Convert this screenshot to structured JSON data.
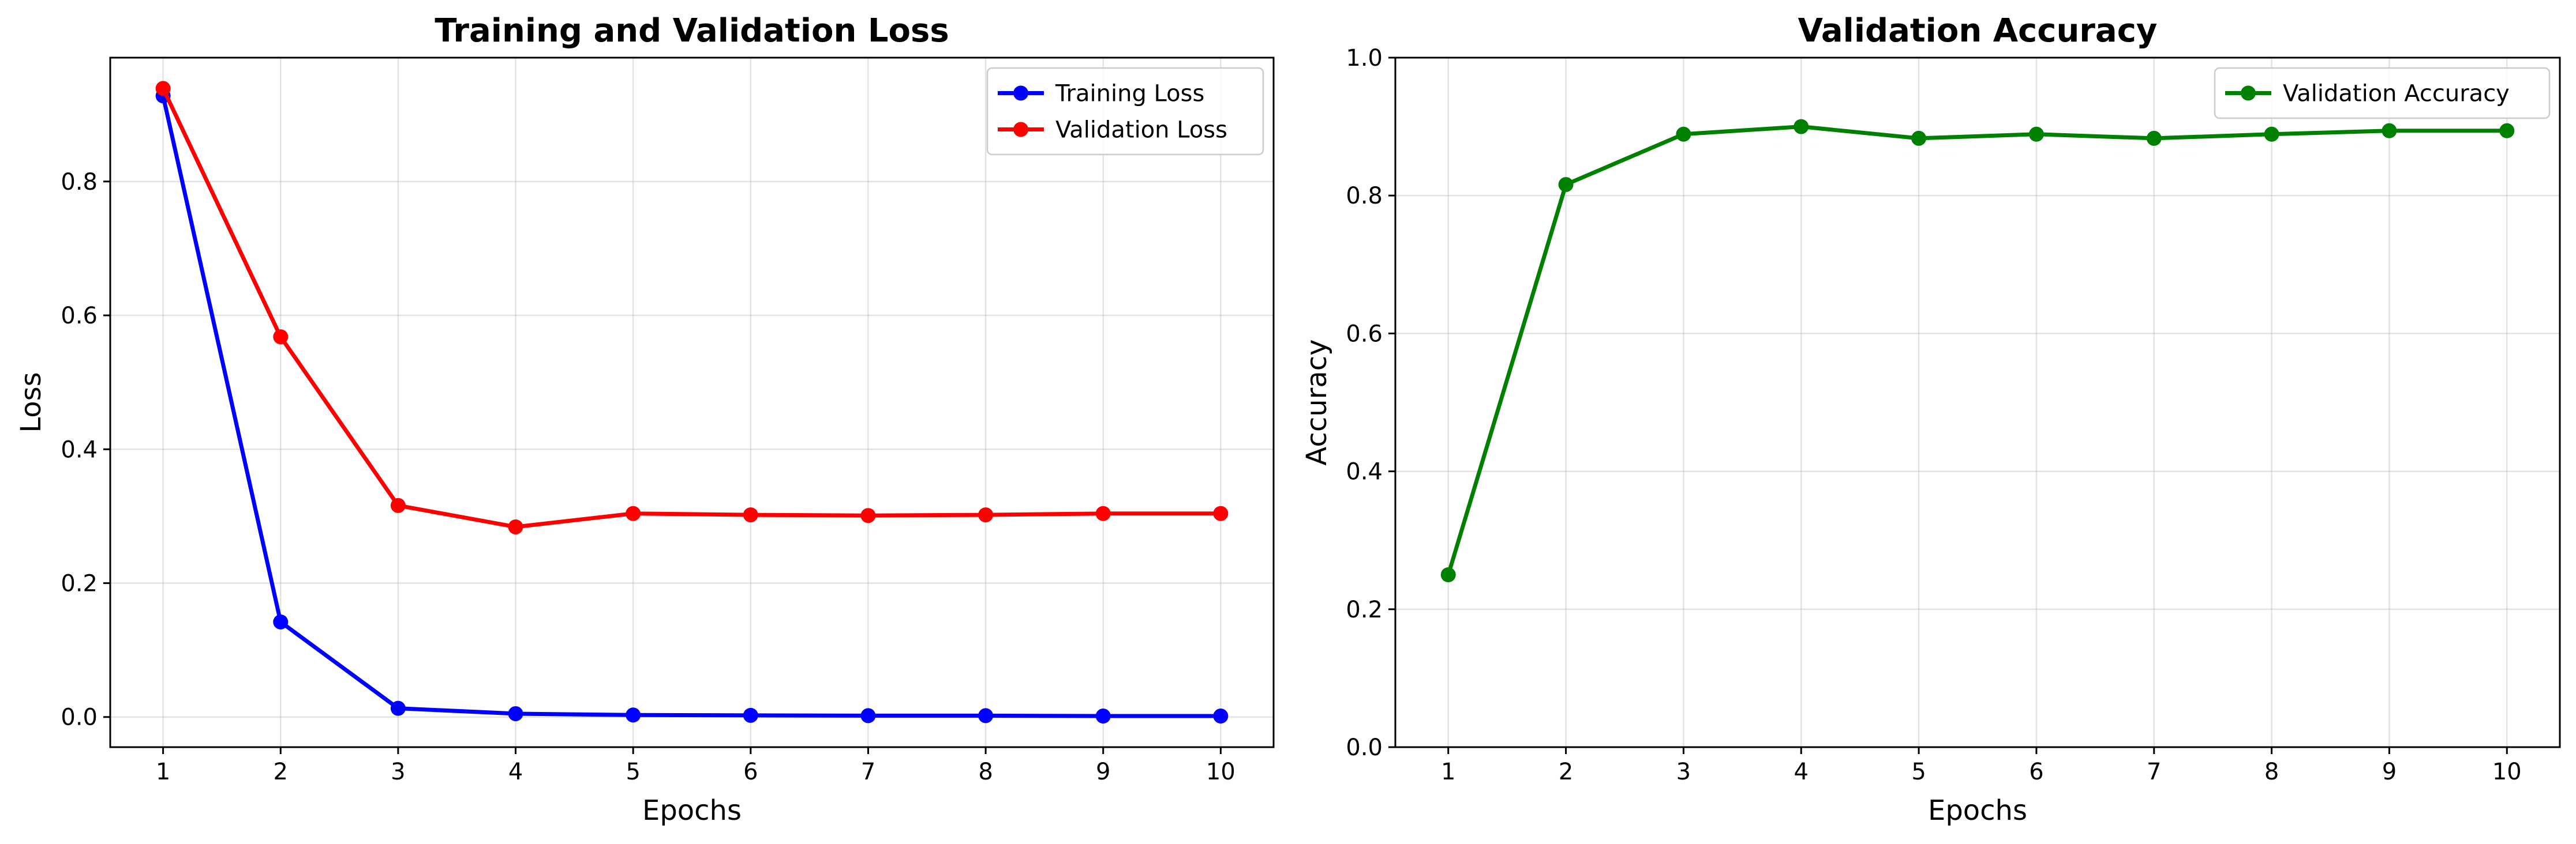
{
  "chart_data": [
    {
      "type": "line",
      "title": "Training and Validation Loss",
      "xlabel": "Epochs",
      "ylabel": "Loss",
      "x": [
        1,
        2,
        3,
        4,
        5,
        6,
        7,
        8,
        9,
        10
      ],
      "xticks": [
        "1",
        "2",
        "3",
        "4",
        "5",
        "6",
        "7",
        "8",
        "9",
        "10"
      ],
      "xlim": [
        0.55,
        10.45
      ],
      "ylim": [
        -0.045,
        0.985
      ],
      "yticks": [
        0.0,
        0.2,
        0.4,
        0.6,
        0.8
      ],
      "ytick_labels": [
        "0.0",
        "0.2",
        "0.4",
        "0.6",
        "0.8"
      ],
      "grid": true,
      "legend_position": "top-right",
      "series": [
        {
          "name": "Training Loss",
          "color": "#0000ff",
          "marker": "circle",
          "values": [
            0.928,
            0.142,
            0.013,
            0.005,
            0.003,
            0.0025,
            0.002,
            0.002,
            0.0015,
            0.0015
          ]
        },
        {
          "name": "Validation Loss",
          "color": "#ff0000",
          "marker": "circle",
          "values": [
            0.939,
            0.568,
            0.316,
            0.284,
            0.304,
            0.302,
            0.301,
            0.302,
            0.304,
            0.304
          ]
        }
      ]
    },
    {
      "type": "line",
      "title": "Validation Accuracy",
      "xlabel": "Epochs",
      "ylabel": "Accuracy",
      "x": [
        1,
        2,
        3,
        4,
        5,
        6,
        7,
        8,
        9,
        10
      ],
      "xticks": [
        "1",
        "2",
        "3",
        "4",
        "5",
        "6",
        "7",
        "8",
        "9",
        "10"
      ],
      "xlim": [
        0.55,
        10.45
      ],
      "ylim": [
        0.0,
        1.0
      ],
      "yticks": [
        0.0,
        0.2,
        0.4,
        0.6,
        0.8,
        1.0
      ],
      "ytick_labels": [
        "0.0",
        "0.2",
        "0.4",
        "0.6",
        "0.8",
        "1.0"
      ],
      "grid": true,
      "legend_position": "top-right",
      "series": [
        {
          "name": "Validation Accuracy",
          "color": "#008000",
          "marker": "circle",
          "values": [
            0.25,
            0.816,
            0.889,
            0.9,
            0.883,
            0.889,
            0.883,
            0.889,
            0.894,
            0.894
          ]
        }
      ]
    }
  ]
}
